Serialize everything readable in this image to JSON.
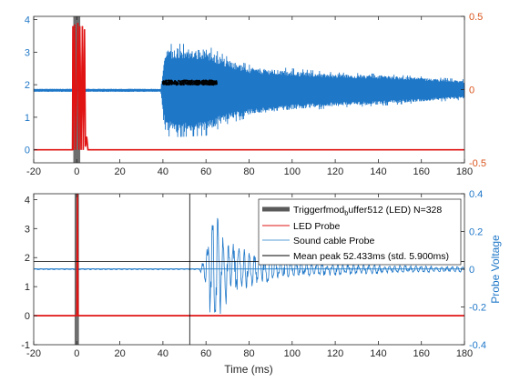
{
  "chart_data": [
    {
      "type": "line",
      "panel": "top",
      "xlim": [
        -20,
        180
      ],
      "x_ticks": [
        "-20",
        "0",
        "20",
        "40",
        "60",
        "80",
        "100",
        "120",
        "140",
        "160",
        "180"
      ],
      "ylim_left": [
        -0.4,
        4.1
      ],
      "y_ticks_left": [
        "0",
        "1",
        "2",
        "3",
        "4"
      ],
      "ylim_right": [
        -0.5,
        0.5
      ],
      "y_ticks_right": [
        "-0.5",
        "0",
        "0.5"
      ],
      "series": [
        {
          "axis": "left",
          "color": "#e11414",
          "style": "line",
          "x": [
            -20,
            -2,
            -1.8,
            -1.6,
            -1,
            -0.5,
            0.5,
            1,
            1.4,
            2,
            2.6,
            3,
            3.6,
            4,
            4.6,
            5.2,
            180
          ],
          "y": [
            0,
            0,
            3.8,
            0,
            3.85,
            0,
            3.9,
            0,
            3.8,
            0,
            3.8,
            0,
            3.7,
            0.1,
            0.4,
            0,
            0
          ]
        },
        {
          "axis": "right",
          "color": "#1f77c8",
          "style": "noisy-envelope",
          "x": [
            -20,
            39,
            41,
            45,
            60,
            65,
            70,
            80,
            100,
            120,
            140,
            160,
            180
          ],
          "center": [
            -0.005,
            -0.005,
            -0.005,
            -0.005,
            -0.005,
            -0.005,
            -0.005,
            -0.01,
            -0.005,
            -0.003,
            -0.002,
            0,
            0
          ],
          "amplitude": [
            0.01,
            0.01,
            0.27,
            0.29,
            0.28,
            0.24,
            0.21,
            0.16,
            0.13,
            0.11,
            0.1,
            0.08,
            0.06
          ],
          "spike_amplitude": [
            0.01,
            0.01,
            0.31,
            0.32,
            0.31,
            0.27,
            0.23,
            0.18,
            0.15,
            0.12,
            0.11,
            0.09,
            0.07
          ]
        },
        {
          "axis": "left",
          "color": "#000000",
          "style": "dots",
          "x_range": [
            40,
            65
          ],
          "y_range": [
            2.0,
            2.13
          ]
        }
      ],
      "trigger_bars": {
        "color": "#555555",
        "x": [
          -1.6,
          1.6
        ]
      }
    },
    {
      "type": "line",
      "panel": "bottom",
      "xlim": [
        -20,
        180
      ],
      "x_ticks": [
        "-20",
        "0",
        "20",
        "40",
        "60",
        "80",
        "100",
        "120",
        "140",
        "160",
        "180"
      ],
      "xlabel": "Time (ms)",
      "ylim_left": [
        -1,
        4.2
      ],
      "y_ticks_left": [
        "-1",
        "0",
        "1",
        "2",
        "3",
        "4"
      ],
      "ylim_right": [
        -0.4,
        0.4
      ],
      "y_ticks_right": [
        "-0.4",
        "-0.2",
        "0",
        "0.2",
        "0.4"
      ],
      "ylabel_right": "Probe Voltage",
      "legend": {
        "position": "top-right",
        "entries": [
          {
            "label": "Triggerfmod",
            "sub": "b",
            "label_after": "uffer512 (LED)   N=328",
            "color": "#5a5a5a",
            "width": 5
          },
          {
            "label": "LED Probe",
            "color": "#e11414",
            "width": 1
          },
          {
            "label": "Sound cable Probe",
            "color": "#5aa0d8",
            "width": 1
          },
          {
            "label": "Mean peak 52.433ms (std. 5.900ms)",
            "color": "#000000",
            "width": 1
          }
        ]
      },
      "trigger_bars": {
        "color": "#555555",
        "x": [
          -1.0,
          1.0
        ]
      },
      "vertical_line_x": 52.433,
      "horizontal_line_y": 1.87,
      "series": [
        {
          "axis": "left",
          "color": "#e11414",
          "style": "line",
          "x": [
            -20,
            0,
            0.3,
            0.6,
            180
          ],
          "y": [
            0,
            0,
            4.2,
            0,
            0
          ]
        },
        {
          "axis": "right",
          "color": "#5aa0d8",
          "style": "line",
          "x": [
            -20,
            180
          ],
          "y": [
            0.002,
            0.002
          ]
        },
        {
          "axis": "right",
          "color": "#1f77c8",
          "style": "decaying-burst",
          "x": [
            -20,
            57,
            59,
            61,
            62,
            63,
            64,
            65,
            66,
            67,
            68,
            70,
            72,
            75,
            80,
            90,
            100,
            120,
            140,
            160,
            180
          ],
          "amplitude": [
            0.003,
            0.003,
            0.06,
            0.15,
            0.27,
            0.33,
            0.34,
            0.31,
            0.28,
            0.25,
            0.22,
            0.18,
            0.15,
            0.13,
            0.1,
            0.07,
            0.05,
            0.035,
            0.025,
            0.018,
            0.015
          ]
        }
      ]
    }
  ]
}
